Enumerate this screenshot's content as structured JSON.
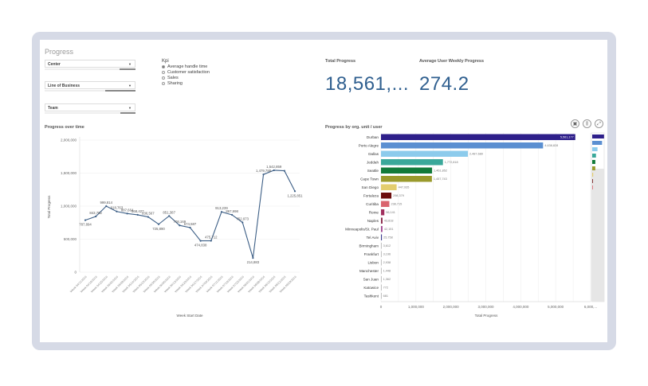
{
  "title": "Progress",
  "filters": [
    {
      "label": "Center"
    },
    {
      "label": "Line of Business"
    },
    {
      "label": "Team"
    }
  ],
  "kpi": {
    "label": "Kpi",
    "options": [
      {
        "label": "Average handle time",
        "selected": true
      },
      {
        "label": "Customer satisfaction",
        "selected": false
      },
      {
        "label": "Sales",
        "selected": false
      },
      {
        "label": "Sharing",
        "selected": false
      }
    ]
  },
  "total_progress": {
    "label": "Total Progress",
    "value": "18,561,..."
  },
  "avg_weekly": {
    "label": "Average User Weekly Progress",
    "value": "274.2"
  },
  "icons": {
    "snapshot": "camera-icon",
    "explore": "sliders-icon",
    "expand": "expand-icon"
  },
  "chart_data": [
    {
      "type": "line",
      "title": "Progress over time",
      "xlabel": "Week Start Date",
      "ylabel": "Total Progress",
      "ylim": [
        0,
        2000000
      ],
      "yticks": [
        "0",
        "500,000",
        "1,000,000",
        "1,500,000",
        "2,000,000"
      ],
      "color": "#3d5f86",
      "categories": [
        "Week 04/11/2016",
        "Week 04/18/2016",
        "Week 04/25/2016",
        "Week 05/02/2016",
        "Week 05/09/2016",
        "Week 05/16/2016",
        "Week 05/23/2016",
        "Week 05/30/2016",
        "Week 06/06/2016",
        "Week 06/13/2016",
        "Week 06/20/2016",
        "Week 06/27/2016",
        "Week 07/04/2016",
        "Week 07/11/2016",
        "Week 07/18/2016",
        "Week 07/25/2016",
        "Week 08/01/2016",
        "Week 08/08/2016",
        "Week 08/15/2016",
        "Week 08/22/2016",
        "Week 08/29/2016"
      ],
      "values": [
        787894,
        843782,
        999814,
        918763,
        887664,
        868427,
        836567,
        725890,
        851387,
        708169,
        674587,
        474838,
        475712,
        913239,
        867998,
        752973,
        214883,
        1479788,
        1542859,
        1535000,
        1225851
      ],
      "labels": [
        "787,894",
        "843,782",
        "999,814",
        "918,763",
        "887,664",
        "868,427",
        "836,567",
        "725,890",
        "851,387",
        "708,169",
        "674,587",
        "474,838",
        "475,712",
        "913,239",
        "867,998",
        "752,973",
        "214,883",
        "1,479,788",
        "1,542,859",
        "",
        "1,225,851"
      ]
    },
    {
      "type": "bar",
      "orientation": "horizontal",
      "title": "Progress by org. unit / user",
      "xlabel": "Total Progress",
      "xlim": [
        0,
        6000000
      ],
      "xticks": [
        "0",
        "1,000,000",
        "2,000,000",
        "3,000,000",
        "4,000,000",
        "5,000,000",
        "6,000,..."
      ],
      "categories": [
        "Durban",
        "Porto Alegre",
        "Dallas",
        "Jeddah",
        "Seattle",
        "Cape Town",
        "San Diego",
        "Fortaleza",
        "Curitiba",
        "Rome",
        "Naples",
        "Minneapolis/St. Paul",
        "Tel Aviv",
        "Birmingham",
        "Frankfurt",
        "Lisbon",
        "Manchester",
        "San Juan",
        "Katowice",
        "Tashkent"
      ],
      "values": [
        5561177,
        4638828,
        2487689,
        1772818,
        1461852,
        1457743,
        447935,
        298379,
        238715,
        96141,
        43818,
        42151,
        25758,
        3612,
        3196,
        2938,
        1448,
        1362,
        772,
        681
      ],
      "labels": [
        "5,561,177",
        "4,638,828",
        "2,487,689",
        "1,772,818",
        "1,461,852",
        "1,457,743",
        "447,935",
        "298,379",
        "238,715",
        "96,141",
        "43,818",
        "42,151",
        "25,758",
        "3,612",
        "3,196",
        "2,938",
        "1,448",
        "1,362",
        "772",
        "681"
      ],
      "colors": [
        "#2e1f8a",
        "#5b8fd1",
        "#8ccbec",
        "#3aa89a",
        "#127a3a",
        "#9a9a2c",
        "#e3cd6e",
        "#6b0d0d",
        "#d9646e",
        "#a1305e",
        "#8a2a4a",
        "#a0468f",
        "#3b3b8f",
        "#999",
        "#999",
        "#999",
        "#999",
        "#999",
        "#999",
        "#999"
      ]
    }
  ]
}
